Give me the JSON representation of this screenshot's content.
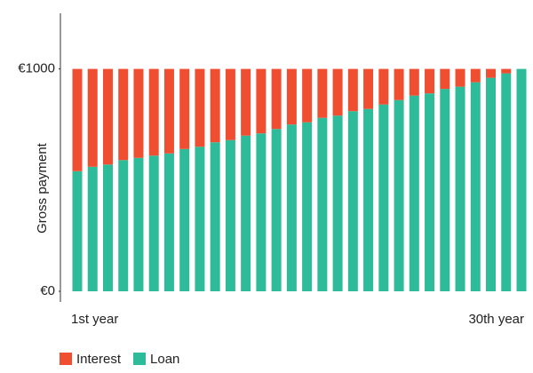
{
  "chart_data": {
    "type": "stacked-bar",
    "y_label": "Gross payment",
    "categories": [
      "1st year",
      null,
      null,
      null,
      null,
      null,
      null,
      null,
      null,
      null,
      null,
      null,
      null,
      null,
      null,
      null,
      null,
      null,
      null,
      null,
      null,
      null,
      null,
      null,
      null,
      null,
      null,
      null,
      null,
      "30th year"
    ],
    "series": [
      {
        "name": "Interest",
        "color": "#f04e30",
        "values": [
          460,
          440,
          430,
          410,
          400,
          390,
          380,
          360,
          350,
          330,
          320,
          300,
          290,
          270,
          250,
          240,
          220,
          210,
          190,
          180,
          160,
          140,
          120,
          110,
          90,
          80,
          60,
          40,
          20,
          0
        ]
      },
      {
        "name": "Loan",
        "color": "#2dbb9a",
        "values": [
          540,
          560,
          570,
          590,
          600,
          610,
          620,
          640,
          650,
          670,
          680,
          700,
          710,
          730,
          750,
          760,
          780,
          790,
          810,
          820,
          840,
          860,
          880,
          890,
          910,
          920,
          940,
          960,
          980,
          1000
        ]
      }
    ],
    "ylim": [
      0,
      1250
    ],
    "yticks": [
      {
        "value": 0,
        "label": "€0"
      },
      {
        "value": 1000,
        "label": "€1000"
      }
    ]
  }
}
